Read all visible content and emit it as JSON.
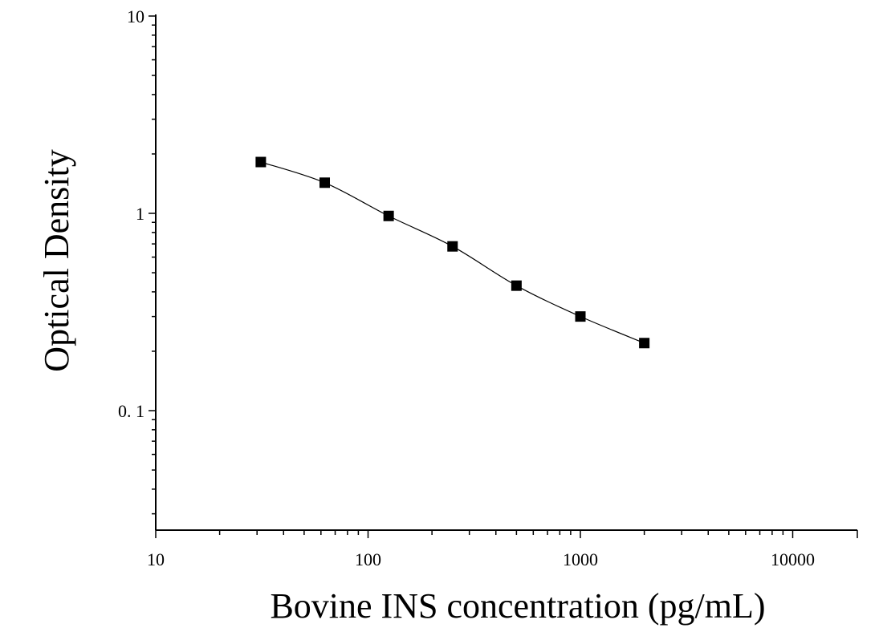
{
  "chart_data": {
    "type": "scatter",
    "title": "",
    "xlabel": "Bovine INS concentration (pg/mL)",
    "ylabel": "Optical Density",
    "xscale": "log",
    "yscale": "log",
    "xlim": [
      10,
      18000
    ],
    "ylim": [
      0.025,
      10
    ],
    "x_ticks": [
      10,
      100,
      1000,
      10000
    ],
    "x_tick_labels": [
      "10",
      "100",
      "1000",
      "10000"
    ],
    "y_ticks": [
      0.1,
      1,
      10
    ],
    "y_tick_labels": [
      "0. 1",
      "1",
      "10"
    ],
    "grid": false,
    "legend": "none",
    "series": [
      {
        "marker": "square",
        "fit_curve": true,
        "color": "#000000",
        "points": [
          {
            "x": 31.25,
            "y": 1.82
          },
          {
            "x": 62.5,
            "y": 1.43
          },
          {
            "x": 125,
            "y": 0.97
          },
          {
            "x": 250,
            "y": 0.68
          },
          {
            "x": 500,
            "y": 0.43
          },
          {
            "x": 1000,
            "y": 0.3
          },
          {
            "x": 2000,
            "y": 0.22
          }
        ]
      }
    ]
  }
}
